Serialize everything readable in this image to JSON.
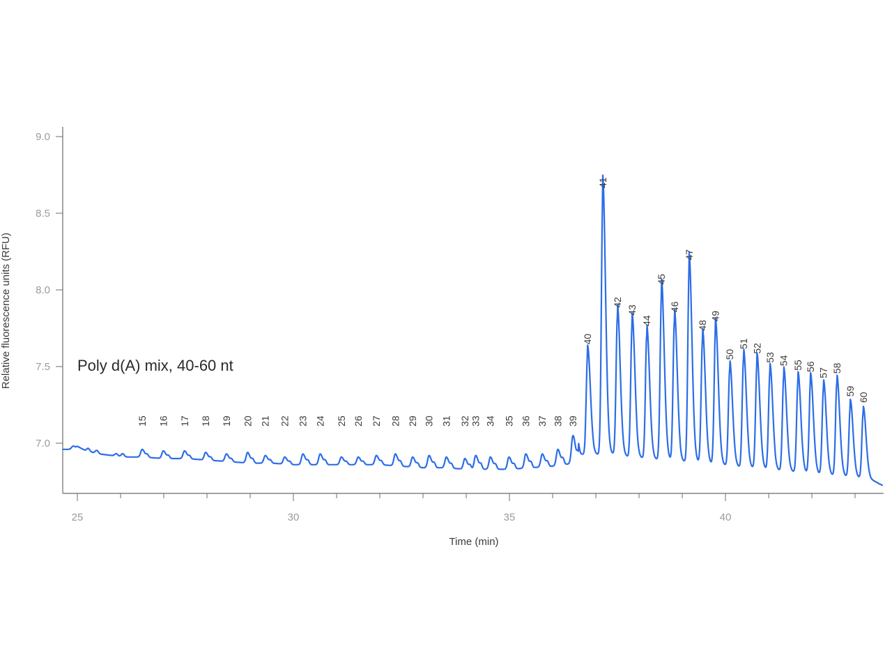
{
  "chart_data": {
    "type": "line",
    "title": "",
    "annotation": "Poly d(A) mix, 40-60 nt",
    "xlabel": "Time (min)",
    "ylabel": "Relative fluorescence units (RFU)",
    "xlim": [
      24.65,
      43.65
    ],
    "ylim": [
      6.68,
      9.07
    ],
    "x_ticks": [
      25,
      30,
      35,
      40
    ],
    "x_minor_step": 1,
    "y_ticks": [
      "7.0",
      "7.5",
      "8.0",
      "8.5",
      "9.0"
    ],
    "grid": false,
    "legend": null,
    "line_color": "#2b6de8",
    "baseline": [
      [
        24.65,
        6.96
      ],
      [
        24.9,
        6.96
      ],
      [
        25.0,
        6.98
      ],
      [
        25.2,
        6.95
      ],
      [
        25.5,
        6.93
      ],
      [
        25.8,
        6.92
      ],
      [
        26.1,
        6.91
      ],
      [
        26.5,
        6.91
      ],
      [
        27.0,
        6.9
      ],
      [
        27.5,
        6.9
      ],
      [
        28.0,
        6.89
      ],
      [
        28.5,
        6.88
      ],
      [
        29.0,
        6.87
      ],
      [
        29.5,
        6.87
      ],
      [
        30.0,
        6.86
      ],
      [
        30.5,
        6.86
      ],
      [
        31.0,
        6.86
      ],
      [
        31.5,
        6.86
      ],
      [
        32.0,
        6.86
      ],
      [
        32.5,
        6.85
      ],
      [
        33.0,
        6.84
      ],
      [
        33.5,
        6.84
      ],
      [
        34.0,
        6.83
      ],
      [
        34.5,
        6.83
      ],
      [
        35.0,
        6.83
      ],
      [
        35.5,
        6.84
      ],
      [
        36.0,
        6.85
      ],
      [
        36.5,
        6.87
      ]
    ],
    "peaks": [
      {
        "label": "15",
        "x": 26.5,
        "y": 6.96
      },
      {
        "label": "16",
        "x": 26.99,
        "y": 6.95
      },
      {
        "label": "17",
        "x": 27.48,
        "y": 6.95
      },
      {
        "label": "18",
        "x": 27.97,
        "y": 6.94
      },
      {
        "label": "19",
        "x": 28.45,
        "y": 6.93
      },
      {
        "label": "20",
        "x": 28.94,
        "y": 6.94
      },
      {
        "label": "21",
        "x": 29.35,
        "y": 6.92
      },
      {
        "label": "22",
        "x": 29.8,
        "y": 6.91
      },
      {
        "label": "23",
        "x": 30.22,
        "y": 6.93
      },
      {
        "label": "24",
        "x": 30.62,
        "y": 6.93
      },
      {
        "label": "25",
        "x": 31.11,
        "y": 6.91
      },
      {
        "label": "26",
        "x": 31.5,
        "y": 6.91
      },
      {
        "label": "27",
        "x": 31.92,
        "y": 6.92
      },
      {
        "label": "28",
        "x": 32.36,
        "y": 6.93
      },
      {
        "label": "29",
        "x": 32.76,
        "y": 6.91
      },
      {
        "label": "30",
        "x": 33.14,
        "y": 6.92
      },
      {
        "label": "31",
        "x": 33.54,
        "y": 6.91
      },
      {
        "label": "32",
        "x": 33.97,
        "y": 6.9
      },
      {
        "label": "33",
        "x": 34.22,
        "y": 6.92
      },
      {
        "label": "34",
        "x": 34.56,
        "y": 6.91
      },
      {
        "label": "35",
        "x": 34.99,
        "y": 6.91
      },
      {
        "label": "36",
        "x": 35.38,
        "y": 6.93
      },
      {
        "label": "37",
        "x": 35.76,
        "y": 6.93
      },
      {
        "label": "38",
        "x": 36.12,
        "y": 6.96
      },
      {
        "label": "39",
        "x": 36.47,
        "y": 7.05
      },
      {
        "label": "40",
        "x": 36.81,
        "y": 7.58
      },
      {
        "label": "41",
        "x": 37.16,
        "y": 8.6
      },
      {
        "label": "42",
        "x": 37.5,
        "y": 7.82
      },
      {
        "label": "43",
        "x": 37.84,
        "y": 7.77
      },
      {
        "label": "44",
        "x": 38.18,
        "y": 7.7
      },
      {
        "label": "45",
        "x": 38.52,
        "y": 7.97
      },
      {
        "label": "46",
        "x": 38.82,
        "y": 7.79
      },
      {
        "label": "47",
        "x": 39.16,
        "y": 8.13
      },
      {
        "label": "48",
        "x": 39.47,
        "y": 7.67
      },
      {
        "label": "49",
        "x": 39.77,
        "y": 7.73
      },
      {
        "label": "50",
        "x": 40.1,
        "y": 7.48
      },
      {
        "label": "51",
        "x": 40.42,
        "y": 7.55
      },
      {
        "label": "52",
        "x": 40.73,
        "y": 7.52
      },
      {
        "label": "53",
        "x": 41.03,
        "y": 7.46
      },
      {
        "label": "54",
        "x": 41.35,
        "y": 7.44
      },
      {
        "label": "55",
        "x": 41.68,
        "y": 7.41
      },
      {
        "label": "56",
        "x": 41.97,
        "y": 7.4
      },
      {
        "label": "57",
        "x": 42.27,
        "y": 7.36
      },
      {
        "label": "58",
        "x": 42.58,
        "y": 7.39
      },
      {
        "label": "59",
        "x": 42.89,
        "y": 7.24
      },
      {
        "label": "60",
        "x": 43.19,
        "y": 7.2
      }
    ],
    "large_peak_baselines": [
      6.93,
      6.94,
      6.93,
      6.92,
      6.92,
      6.92,
      6.91,
      6.9,
      6.89,
      6.88,
      6.87,
      6.86,
      6.85,
      6.85,
      6.84,
      6.83,
      6.82,
      6.81,
      6.8,
      6.79,
      6.78,
      6.77
    ]
  },
  "labels": {
    "annotation": "Poly d(A) mix, 40-60 nt",
    "xlabel": "Time (min)",
    "ylabel": "Relative fluorescence units (RFU)"
  }
}
